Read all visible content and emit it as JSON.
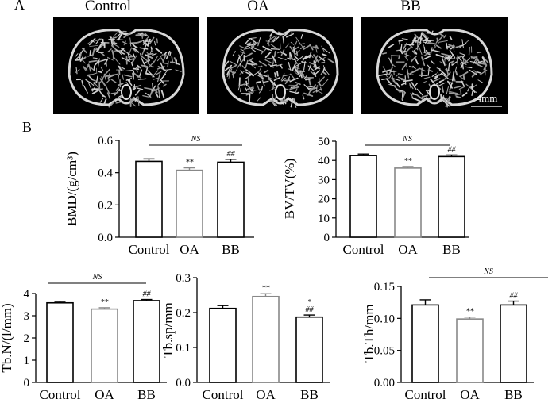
{
  "panel_a": {
    "label": "A",
    "images": [
      {
        "label": "Control"
      },
      {
        "label": "OA"
      },
      {
        "label": "BB"
      }
    ],
    "scale_bar_label": "4mm"
  },
  "panel_b": {
    "label": "B"
  },
  "colors": {
    "Control": "#000000",
    "OA": "#888888",
    "BB": "#000000"
  },
  "chart_data": [
    {
      "type": "bar",
      "categories": [
        "Control",
        "OA",
        "BB"
      ],
      "values": [
        0.47,
        0.415,
        0.465
      ],
      "errors": [
        0.015,
        0.015,
        0.018
      ],
      "annotations": [
        "",
        "**",
        "##"
      ],
      "bracket_label": "NS",
      "ylabel": "BMD/(g/cm³)",
      "ylim": [
        0,
        0.6
      ],
      "yticks": [
        "0.0",
        "0.2",
        "0.4",
        "0.6"
      ]
    },
    {
      "type": "bar",
      "categories": [
        "Control",
        "OA",
        "BB"
      ],
      "values": [
        42.5,
        36,
        42
      ],
      "errors": [
        0.8,
        0.8,
        0.8
      ],
      "annotations": [
        "",
        "**",
        "##"
      ],
      "bracket_label": "NS",
      "ylabel": "BV/TV(%)",
      "ylim": [
        0,
        50
      ],
      "yticks": [
        "0",
        "10",
        "20",
        "30",
        "40",
        "50"
      ]
    },
    {
      "type": "bar",
      "categories": [
        "Control",
        "OA",
        "BB"
      ],
      "values": [
        3.58,
        3.3,
        3.68
      ],
      "errors": [
        0.06,
        0.06,
        0.05
      ],
      "annotations": [
        "",
        "**",
        "##"
      ],
      "bracket_label": "NS",
      "ylabel": "Tb.N/(l/mm)",
      "ylim": [
        0,
        4
      ],
      "yticks": [
        "0",
        "1",
        "2",
        "3",
        "4"
      ]
    },
    {
      "type": "bar",
      "categories": [
        "Control",
        "OA",
        "BB"
      ],
      "values": [
        0.212,
        0.246,
        0.187
      ],
      "errors": [
        0.008,
        0.008,
        0.006
      ],
      "annotations": [
        "",
        "**",
        "*\n##"
      ],
      "bracket_label": "",
      "ylabel": "Tb.sp/mm",
      "ylim": [
        0,
        0.3
      ],
      "yticks": [
        "0.0",
        "0.1",
        "0.2",
        "0.3"
      ]
    },
    {
      "type": "bar",
      "categories": [
        "Control",
        "OA",
        "BB"
      ],
      "values": [
        0.121,
        0.099,
        0.121
      ],
      "errors": [
        0.008,
        0.003,
        0.006
      ],
      "annotations": [
        "",
        "**",
        "##"
      ],
      "bracket_label": "NS",
      "ylabel": "Tb.Th/mm",
      "ylim": [
        0,
        0.15
      ],
      "yticks": [
        "0.00",
        "0.05",
        "0.10",
        "0.15"
      ]
    }
  ]
}
